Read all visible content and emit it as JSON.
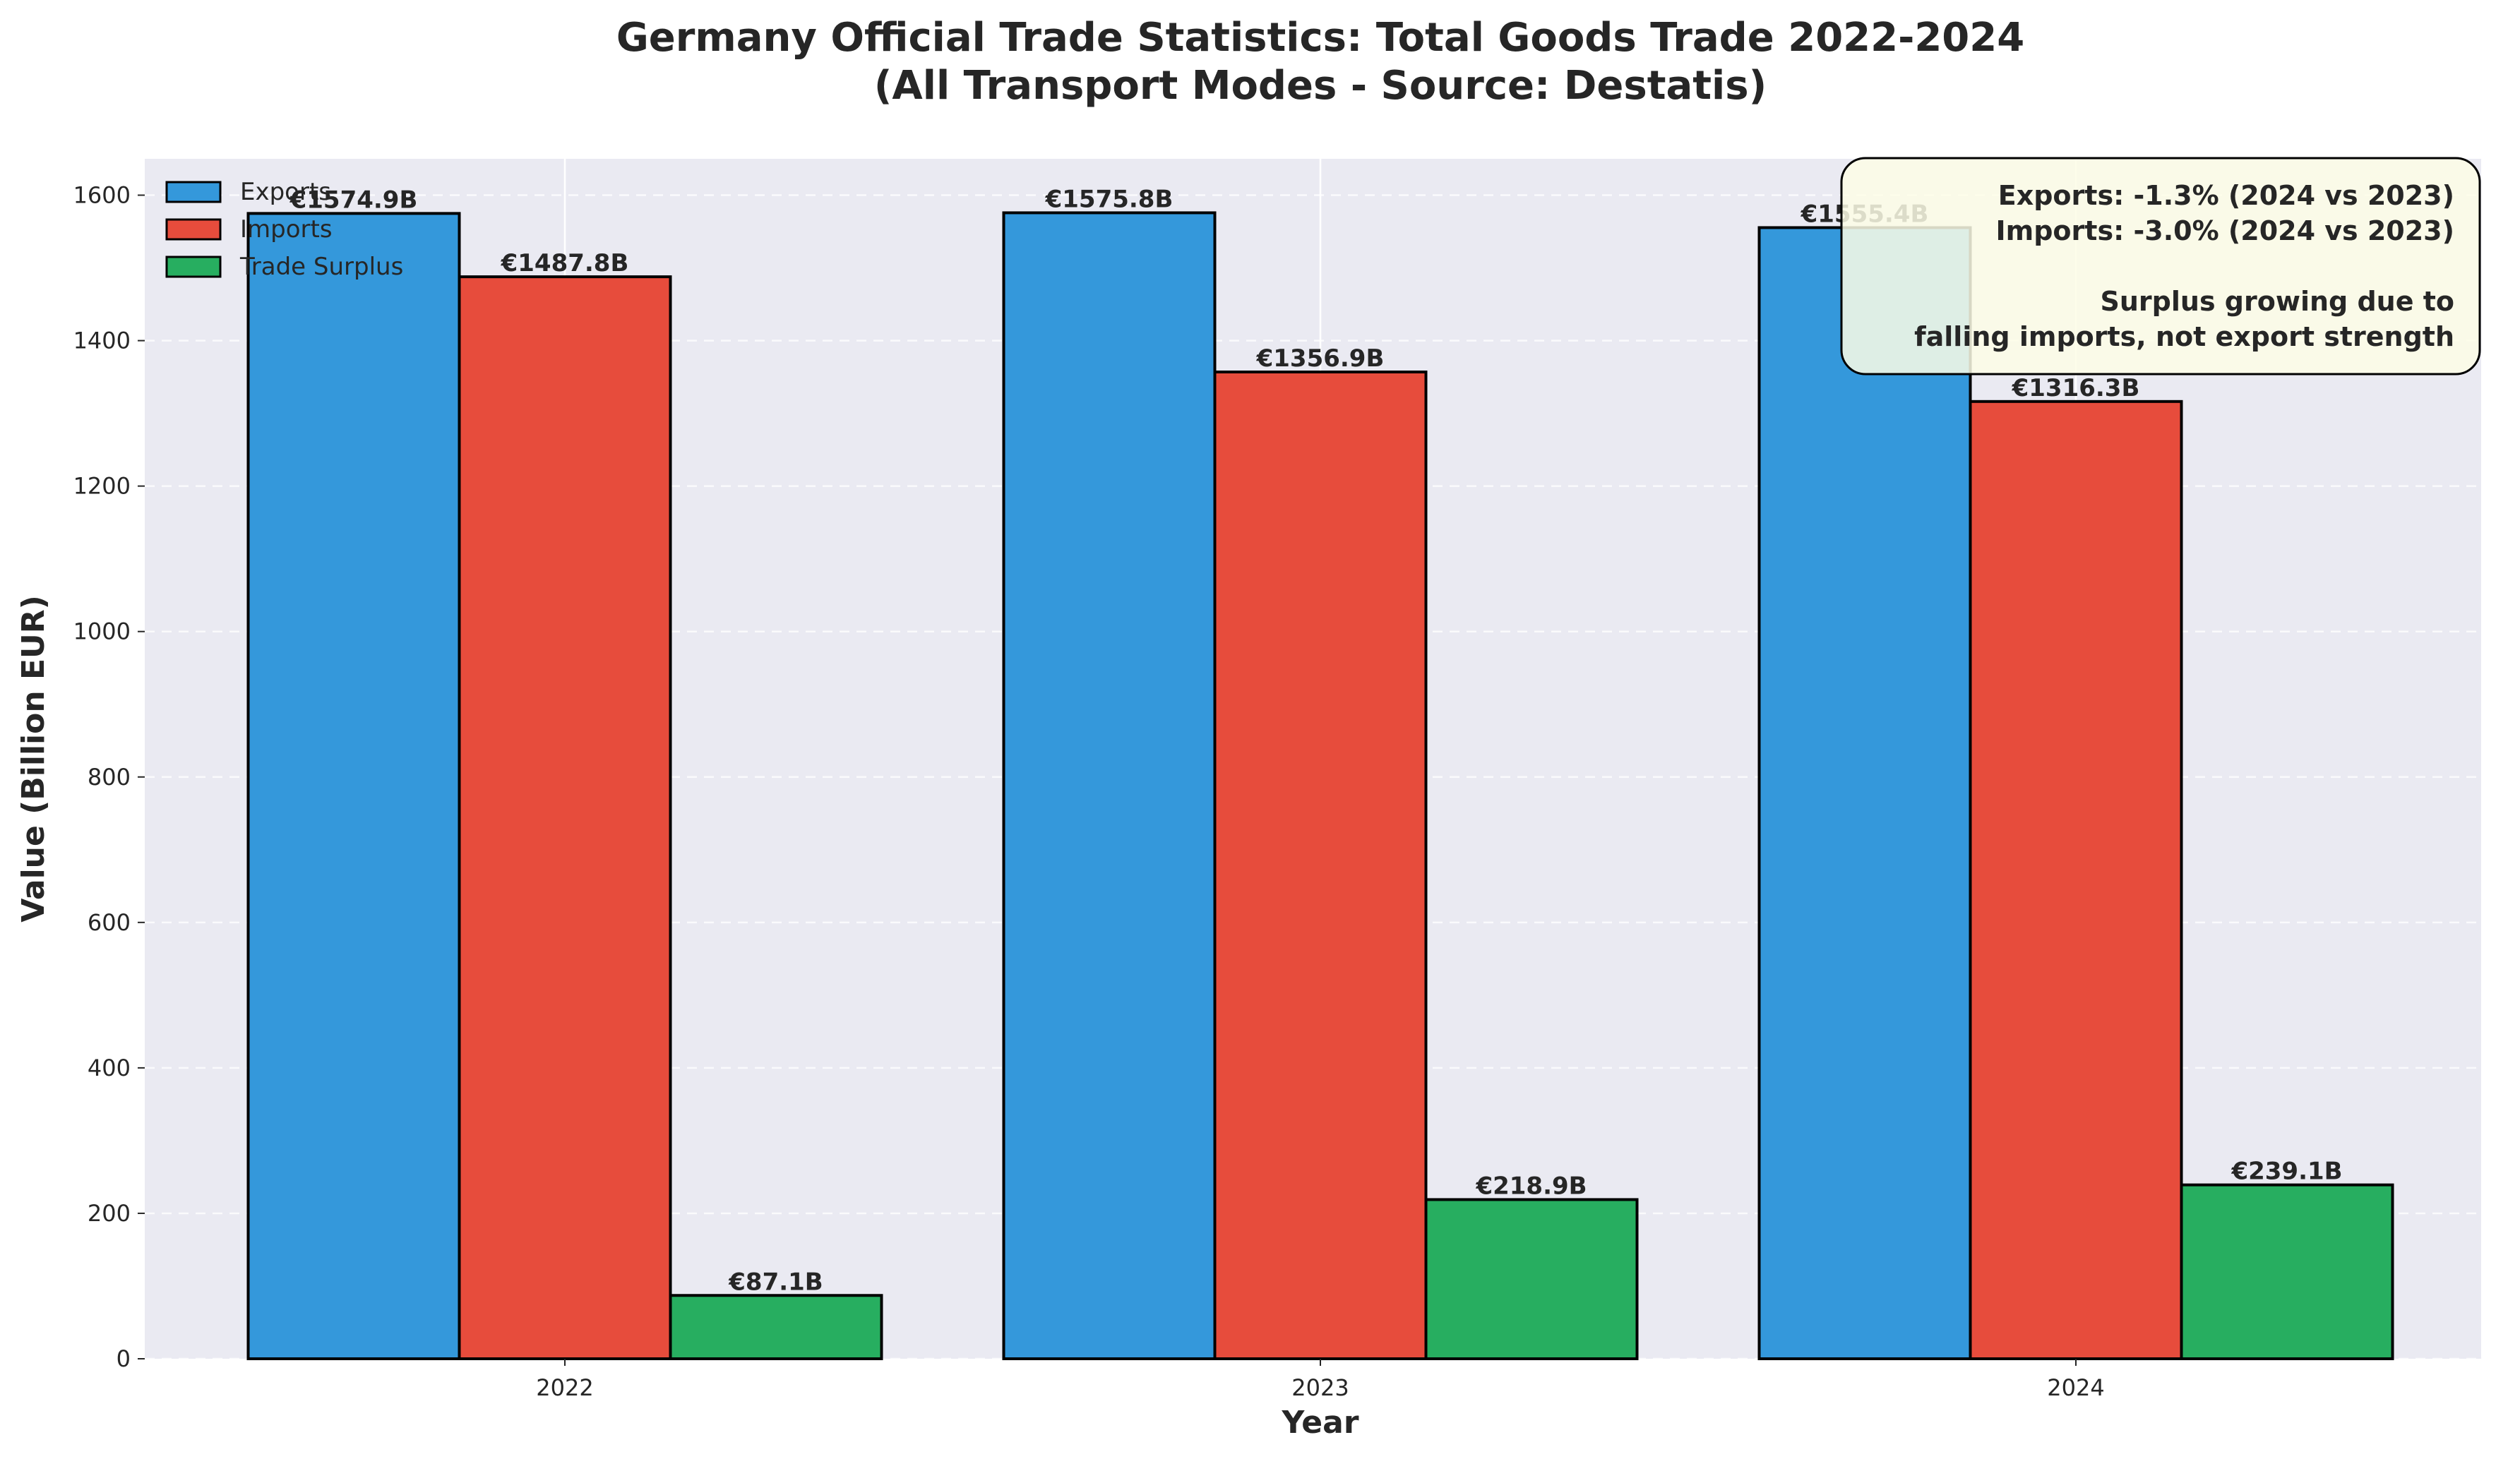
{
  "chart_data": {
    "type": "bar",
    "title": "Germany Official Trade Statistics: Total Goods Trade 2022-2024",
    "subtitle": "(All Transport Modes - Source: Destatis)",
    "xlabel": "Year",
    "ylabel": "Value (Billion EUR)",
    "categories": [
      "2022",
      "2023",
      "2024"
    ],
    "series": [
      {
        "name": "Exports",
        "color": "#3498db",
        "values": [
          1574.9,
          1575.8,
          1555.4
        ],
        "labels": [
          "€1574.9B",
          "€1575.8B",
          "€1555.4B"
        ]
      },
      {
        "name": "Imports",
        "color": "#e74c3c",
        "values": [
          1487.8,
          1356.9,
          1316.3
        ],
        "labels": [
          "€1487.8B",
          "€1356.9B",
          "€1316.3B"
        ]
      },
      {
        "name": "Trade Surplus",
        "color": "#27ae60",
        "values": [
          87.1,
          218.9,
          239.1
        ],
        "labels": [
          "€87.1B",
          "€218.9B",
          "€239.1B"
        ]
      }
    ],
    "ylim": [
      0,
      1650
    ],
    "yticks": [
      0,
      200,
      400,
      600,
      800,
      1000,
      1200,
      1400,
      1600
    ],
    "ytick_labels": [
      "0",
      "200",
      "400",
      "600",
      "800",
      "1000",
      "1200",
      "1400",
      "1600"
    ],
    "grid": true,
    "legend_position": "top-left",
    "annotation": {
      "lines": [
        "Exports: -1.3% (2024 vs 2023)",
        "Imports: -3.0% (2024 vs 2023)",
        "",
        "Surplus growing due to",
        "falling imports, not export strength"
      ],
      "position": "top-right",
      "background": "#fdfde6"
    }
  },
  "colors": {
    "plot_background": "#eaeaf2",
    "grid": "#ffffff",
    "edge": "#000000"
  }
}
